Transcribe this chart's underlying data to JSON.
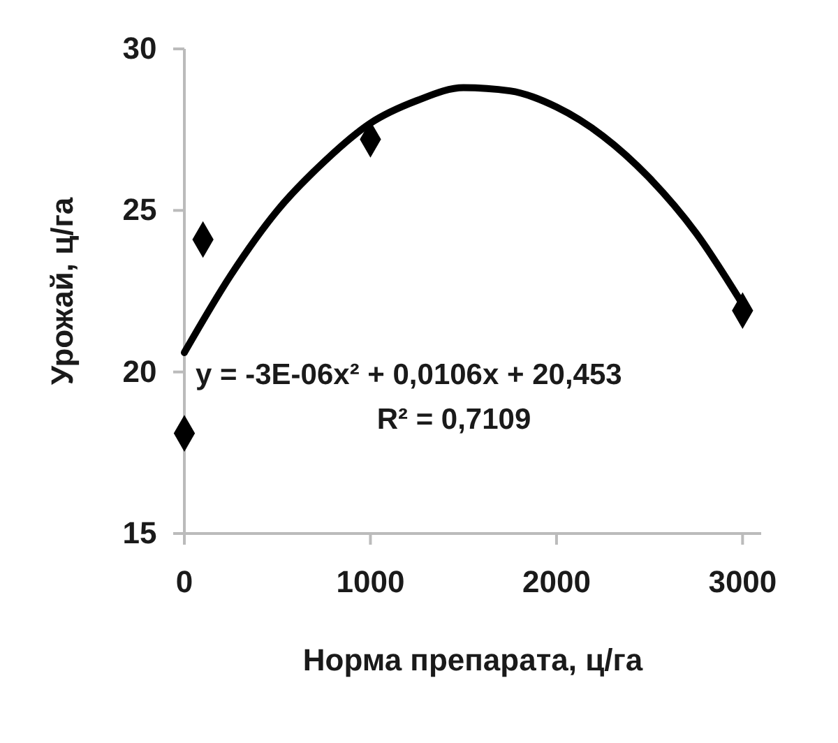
{
  "chart_data": {
    "type": "scatter",
    "xlabel": "Норма препарата, ц/га",
    "ylabel": "Урожай, ц/га",
    "xlim": [
      0,
      3100
    ],
    "ylim": [
      15,
      30
    ],
    "xticks": [
      0,
      1000,
      2000,
      3000
    ],
    "yticks": [
      15,
      20,
      25,
      30
    ],
    "grid": false,
    "marker": "diamond",
    "series": [
      {
        "color": "#000000",
        "x": [
          0,
          100,
          1000,
          3000
        ],
        "values": [
          18.1,
          24.1,
          27.2,
          21.9
        ]
      },
      {
        "type": "line",
        "color": "#000000",
        "line_style": "solid",
        "marker": "none",
        "x": [
          0,
          250,
          500,
          750,
          1000,
          1250,
          1500,
          1750,
          2000,
          2250,
          2500,
          2750,
          3000
        ],
        "values": [
          20.6,
          23.0,
          25.0,
          26.5,
          27.7,
          28.4,
          28.8,
          28.7,
          28.2,
          27.3,
          26.0,
          24.3,
          22.1
        ]
      }
    ],
    "annotations": [
      "y = -3E-06x² + 0,0106x + 20,453",
      "R² = 0,7109"
    ]
  }
}
